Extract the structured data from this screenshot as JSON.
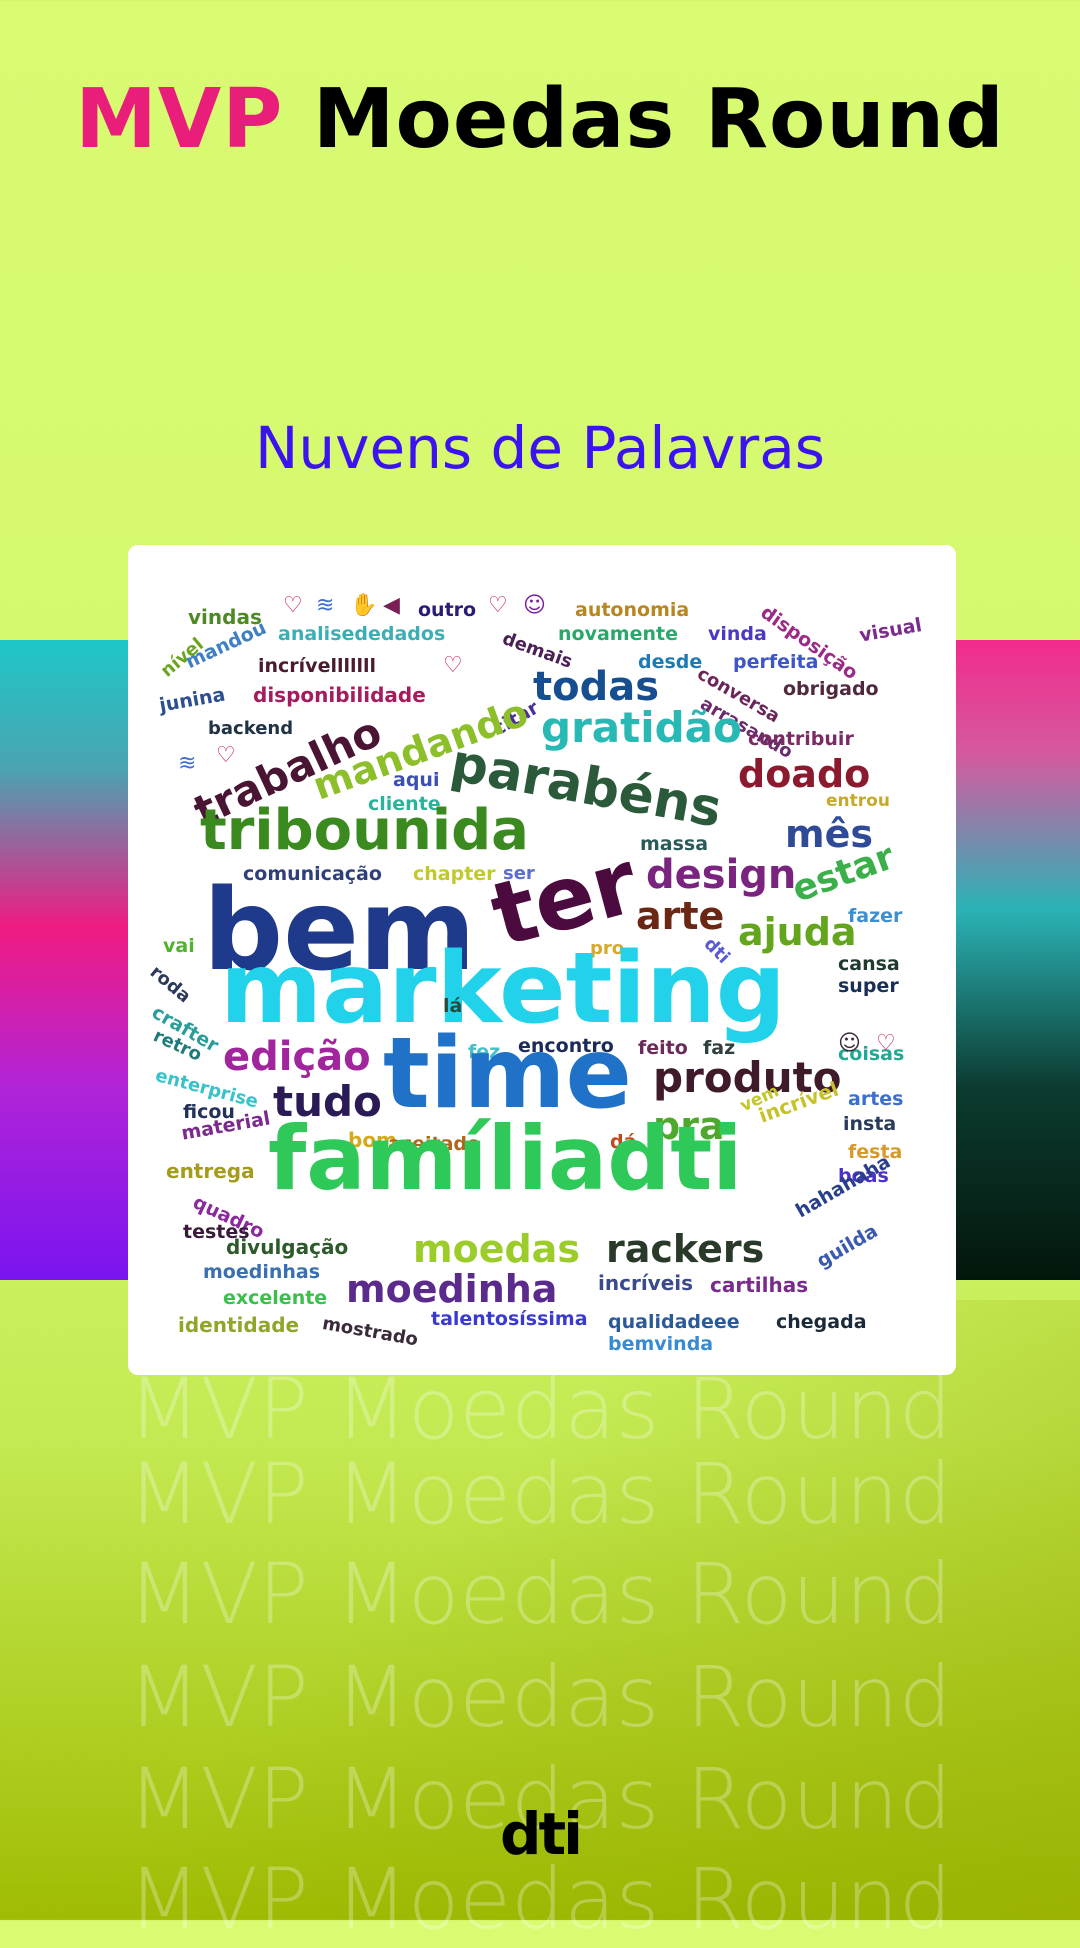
{
  "header": {
    "title_highlight": "MVP",
    "title_rest": " Moedas Round",
    "subtitle": "Nuvens de Palavras"
  },
  "watermark_text": "MVP Moedas Round",
  "logo_text": "dti",
  "colors": {
    "title_highlight": "#e91e7b",
    "subtitle": "#3b12f0",
    "background": "#d8fb72"
  },
  "word_cloud": {
    "emoji_icons": [
      "heart-icon",
      "rainbow-icon",
      "hands-icon",
      "megaphone-icon",
      "heart-icon",
      "grin-icon",
      "heart-icon",
      "rainbow-icon",
      "heart-icon",
      "laugh-icon",
      "heart-icon"
    ],
    "words": [
      {
        "text": "vindas",
        "color": "#4e8a23"
      },
      {
        "text": "outro",
        "color": "#2b1a78"
      },
      {
        "text": "autonomia",
        "color": "#b8861d"
      },
      {
        "text": "disposição",
        "color": "#9b2a86"
      },
      {
        "text": "visual",
        "color": "#7b2a8f"
      },
      {
        "text": "nível",
        "color": "#6aa61d"
      },
      {
        "text": "mandou",
        "color": "#3f7fc3"
      },
      {
        "text": "analisededados",
        "color": "#38b0b5"
      },
      {
        "text": "demais",
        "color": "#4a1f55"
      },
      {
        "text": "novamente",
        "color": "#27a96a"
      },
      {
        "text": "vinda",
        "color": "#4a39c7"
      },
      {
        "text": "perfeita",
        "color": "#3c56c8"
      },
      {
        "text": "junina",
        "color": "#2c4f91"
      },
      {
        "text": "incrívelllllll",
        "color": "#4b1a2e"
      },
      {
        "text": "desde",
        "color": "#1c7ab5"
      },
      {
        "text": "conversa",
        "color": "#6b2457"
      },
      {
        "text": "obrigado",
        "color": "#4f2a3e"
      },
      {
        "text": "disponibilidade",
        "color": "#a51b5d"
      },
      {
        "text": "todas",
        "color": "#174e8f"
      },
      {
        "text": "arrasando",
        "color": "#6a2a6e"
      },
      {
        "text": "backend",
        "color": "#203246"
      },
      {
        "text": "citar",
        "color": "#4c2e98"
      },
      {
        "text": "gratidão",
        "color": "#29b9b5"
      },
      {
        "text": "contribuir",
        "color": "#7b2b63"
      },
      {
        "text": "trabalho",
        "color": "#4a1533"
      },
      {
        "text": "mandando",
        "color": "#8cbf2a"
      },
      {
        "text": "parabéns",
        "color": "#2a5a3a"
      },
      {
        "text": "doado",
        "color": "#8b1a2f"
      },
      {
        "text": "aqui",
        "color": "#3c4fb2"
      },
      {
        "text": "cliente",
        "color": "#2bb39a"
      },
      {
        "text": "entrou",
        "color": "#c7a92a"
      },
      {
        "text": "tribounida",
        "color": "#3a8a1f"
      },
      {
        "text": "massa",
        "color": "#2b5a5a"
      },
      {
        "text": "mês",
        "color": "#2f4a96"
      },
      {
        "text": "comunicação",
        "color": "#2f3f7c"
      },
      {
        "text": "chapter",
        "color": "#c1ca2a"
      },
      {
        "text": "ser",
        "color": "#5a6fd0"
      },
      {
        "text": "design",
        "color": "#7a237f"
      },
      {
        "text": "estar",
        "color": "#3bb04a"
      },
      {
        "text": "bem",
        "color": "#1f3a8a"
      },
      {
        "text": "ter",
        "color": "#4c0b3e"
      },
      {
        "text": "arte",
        "color": "#6a2713"
      },
      {
        "text": "fazer",
        "color": "#3c8fd0"
      },
      {
        "text": "vai",
        "color": "#4fb52c"
      },
      {
        "text": "pro",
        "color": "#d7a92a"
      },
      {
        "text": "dti",
        "color": "#5a5ad0"
      },
      {
        "text": "ajuda",
        "color": "#63a61d"
      },
      {
        "text": "cansa",
        "color": "#203b2e"
      },
      {
        "text": "roda",
        "color": "#2b3a5a"
      },
      {
        "text": "marketing",
        "color": "#21d2ea"
      },
      {
        "text": "super",
        "color": "#1a2f56"
      },
      {
        "text": "crafter",
        "color": "#2a9c9a"
      },
      {
        "text": "lá",
        "color": "#2b4a3a"
      },
      {
        "text": "retro",
        "color": "#1f7a7a"
      },
      {
        "text": "edição",
        "color": "#a1259d"
      },
      {
        "text": "fez",
        "color": "#46c0c8"
      },
      {
        "text": "encontro",
        "color": "#1b2a5a"
      },
      {
        "text": "feito",
        "color": "#6a2a5a"
      },
      {
        "text": "faz",
        "color": "#2f3e3e"
      },
      {
        "text": "coisas",
        "color": "#22a994"
      },
      {
        "text": "time",
        "color": "#1f72c7"
      },
      {
        "text": "produto",
        "color": "#3f1a2a"
      },
      {
        "text": "enterprise",
        "color": "#38c2c9"
      },
      {
        "text": "artes",
        "color": "#3a6fd0"
      },
      {
        "text": "ficou",
        "color": "#21315a"
      },
      {
        "text": "tudo",
        "color": "#2a1a55"
      },
      {
        "text": "vem",
        "color": "#c2c72a"
      },
      {
        "text": "insta",
        "color": "#2a3a5a"
      },
      {
        "text": "material",
        "color": "#7a2a8c"
      },
      {
        "text": "pra",
        "color": "#4ea82e"
      },
      {
        "text": "incrível",
        "color": "#c8c22a"
      },
      {
        "text": "festa",
        "color": "#d69a2a"
      },
      {
        "text": "bom",
        "color": "#d6a91c"
      },
      {
        "text": "aceitado",
        "color": "#b0651c"
      },
      {
        "text": "dá",
        "color": "#c0491c"
      },
      {
        "text": "entrega",
        "color": "#a59b1c"
      },
      {
        "text": "famíliadti",
        "color": "#2fc95a"
      },
      {
        "text": "boas",
        "color": "#4a32c8"
      },
      {
        "text": "quadro",
        "color": "#8a2a9c"
      },
      {
        "text": "hahahaha",
        "color": "#2a3f8c"
      },
      {
        "text": "testes",
        "color": "#3a1a3a"
      },
      {
        "text": "divulgação",
        "color": "#2d5a2a"
      },
      {
        "text": "moedas",
        "color": "#9ccc2a"
      },
      {
        "text": "rackers",
        "color": "#2a3a2a"
      },
      {
        "text": "guilda",
        "color": "#3a5ab0"
      },
      {
        "text": "moedinhas",
        "color": "#3a6fb0"
      },
      {
        "text": "excelente",
        "color": "#3ac04a"
      },
      {
        "text": "moedinha",
        "color": "#5a2a8c"
      },
      {
        "text": "incríveis",
        "color": "#3a4a8c"
      },
      {
        "text": "cartilhas",
        "color": "#7a2a8c"
      },
      {
        "text": "identidade",
        "color": "#8fa62a"
      },
      {
        "text": "mostrado",
        "color": "#3a2a3a"
      },
      {
        "text": "talentosíssima",
        "color": "#3a3ad0"
      },
      {
        "text": "qualidadeee",
        "color": "#2a5a9c"
      },
      {
        "text": "chegada",
        "color": "#1a2a3a"
      },
      {
        "text": "bemvinda",
        "color": "#3a8ad0"
      }
    ]
  }
}
